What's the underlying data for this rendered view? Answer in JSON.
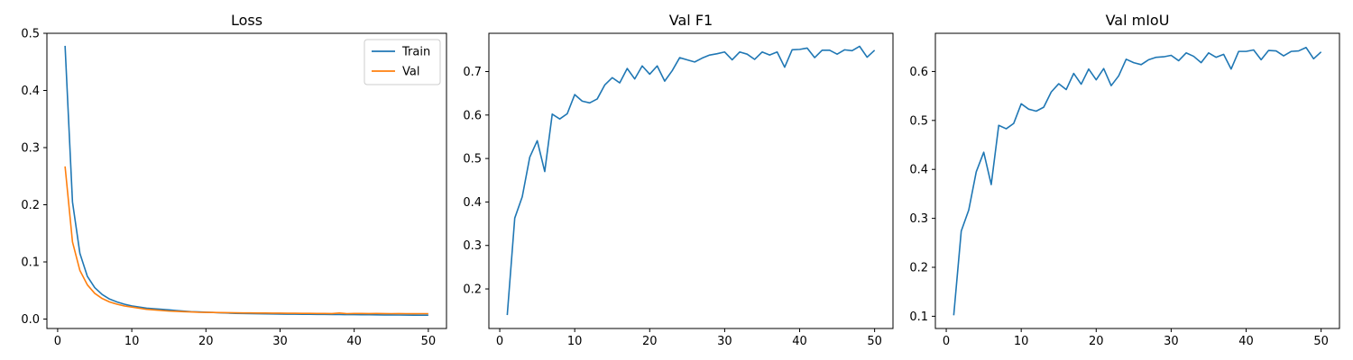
{
  "chart_data": [
    {
      "type": "line",
      "title": "Loss",
      "xlabel": "",
      "ylabel": "",
      "xlim": [
        -1.45,
        52.45
      ],
      "ylim": [
        -0.0165,
        0.5
      ],
      "xticks": [
        0,
        10,
        20,
        30,
        40,
        50
      ],
      "yticks": [
        0.0,
        0.1,
        0.2,
        0.3,
        0.4,
        0.5
      ],
      "ytick_labels": [
        "0.0",
        "0.1",
        "0.2",
        "0.3",
        "0.4",
        "0.5"
      ],
      "grid": false,
      "legend": "top-right",
      "x": [
        1,
        2,
        3,
        4,
        5,
        6,
        7,
        8,
        9,
        10,
        11,
        12,
        13,
        14,
        15,
        16,
        17,
        18,
        19,
        20,
        21,
        22,
        23,
        24,
        25,
        26,
        27,
        28,
        29,
        30,
        31,
        32,
        33,
        34,
        35,
        36,
        37,
        38,
        39,
        40,
        41,
        42,
        43,
        44,
        45,
        46,
        47,
        48,
        49,
        50
      ],
      "series": [
        {
          "name": "Train",
          "color": "#1f77b4",
          "values": [
            0.478,
            0.205,
            0.115,
            0.075,
            0.055,
            0.043,
            0.035,
            0.03,
            0.026,
            0.023,
            0.021,
            0.019,
            0.018,
            0.017,
            0.016,
            0.015,
            0.014,
            0.013,
            0.0125,
            0.012,
            0.0115,
            0.011,
            0.0105,
            0.01,
            0.0098,
            0.0096,
            0.0094,
            0.0092,
            0.009,
            0.0088,
            0.0086,
            0.0085,
            0.0084,
            0.0083,
            0.0082,
            0.0081,
            0.008,
            0.0079,
            0.0078,
            0.0077,
            0.0076,
            0.0075,
            0.0074,
            0.0073,
            0.0072,
            0.0071,
            0.007,
            0.0069,
            0.0068,
            0.0068
          ]
        },
        {
          "name": "Val",
          "color": "#ff7f0e",
          "values": [
            0.267,
            0.135,
            0.085,
            0.06,
            0.045,
            0.036,
            0.03,
            0.026,
            0.023,
            0.021,
            0.019,
            0.017,
            0.016,
            0.015,
            0.014,
            0.0135,
            0.013,
            0.0125,
            0.012,
            0.0118,
            0.0116,
            0.0114,
            0.0112,
            0.011,
            0.0108,
            0.0107,
            0.0106,
            0.0105,
            0.0104,
            0.0103,
            0.0102,
            0.0101,
            0.01,
            0.0099,
            0.0098,
            0.0097,
            0.0096,
            0.0105,
            0.0095,
            0.0098,
            0.0097,
            0.0096,
            0.0097,
            0.0096,
            0.0095,
            0.0096,
            0.0095,
            0.0094,
            0.0095,
            0.0095
          ]
        }
      ]
    },
    {
      "type": "line",
      "title": "Val F1",
      "xlabel": "",
      "ylabel": "",
      "xlim": [
        -1.45,
        52.45
      ],
      "ylim": [
        0.109,
        0.788
      ],
      "xticks": [
        0,
        10,
        20,
        30,
        40,
        50
      ],
      "yticks": [
        0.2,
        0.3,
        0.4,
        0.5,
        0.6,
        0.7
      ],
      "ytick_labels": [
        "0.2",
        "0.3",
        "0.4",
        "0.5",
        "0.6",
        "0.7"
      ],
      "grid": false,
      "x": [
        1,
        2,
        3,
        4,
        5,
        6,
        7,
        8,
        9,
        10,
        11,
        12,
        13,
        14,
        15,
        16,
        17,
        18,
        19,
        20,
        21,
        22,
        23,
        24,
        25,
        26,
        27,
        28,
        29,
        30,
        31,
        32,
        33,
        34,
        35,
        36,
        37,
        38,
        39,
        40,
        41,
        42,
        43,
        44,
        45,
        46,
        47,
        48,
        49,
        50
      ],
      "series": [
        {
          "color": "#1f77b4",
          "values": [
            0.14,
            0.363,
            0.412,
            0.503,
            0.541,
            0.47,
            0.602,
            0.591,
            0.603,
            0.647,
            0.632,
            0.628,
            0.637,
            0.669,
            0.686,
            0.674,
            0.707,
            0.683,
            0.713,
            0.694,
            0.713,
            0.678,
            0.702,
            0.732,
            0.727,
            0.722,
            0.731,
            0.738,
            0.741,
            0.745,
            0.727,
            0.745,
            0.74,
            0.728,
            0.745,
            0.738,
            0.745,
            0.71,
            0.75,
            0.751,
            0.754,
            0.732,
            0.749,
            0.749,
            0.74,
            0.75,
            0.748,
            0.758,
            0.733,
            0.749
          ]
        }
      ]
    },
    {
      "type": "line",
      "title": "Val mIoU",
      "xlabel": "",
      "ylabel": "",
      "xlim": [
        -1.45,
        52.45
      ],
      "ylim": [
        0.075,
        0.678
      ],
      "xticks": [
        0,
        10,
        20,
        30,
        40,
        50
      ],
      "yticks": [
        0.1,
        0.2,
        0.3,
        0.4,
        0.5,
        0.6
      ],
      "ytick_labels": [
        "0.1",
        "0.2",
        "0.3",
        "0.4",
        "0.5",
        "0.6"
      ],
      "grid": false,
      "x": [
        1,
        2,
        3,
        4,
        5,
        6,
        7,
        8,
        9,
        10,
        11,
        12,
        13,
        14,
        15,
        16,
        17,
        18,
        19,
        20,
        21,
        22,
        23,
        24,
        25,
        26,
        27,
        28,
        29,
        30,
        31,
        32,
        33,
        34,
        35,
        36,
        37,
        38,
        39,
        40,
        41,
        42,
        43,
        44,
        45,
        46,
        47,
        48,
        49,
        50
      ],
      "series": [
        {
          "color": "#1f77b4",
          "values": [
            0.102,
            0.274,
            0.317,
            0.395,
            0.435,
            0.369,
            0.49,
            0.483,
            0.494,
            0.534,
            0.523,
            0.519,
            0.527,
            0.558,
            0.575,
            0.563,
            0.596,
            0.574,
            0.605,
            0.583,
            0.606,
            0.571,
            0.591,
            0.625,
            0.618,
            0.614,
            0.624,
            0.629,
            0.63,
            0.633,
            0.622,
            0.638,
            0.631,
            0.618,
            0.638,
            0.629,
            0.635,
            0.605,
            0.641,
            0.641,
            0.644,
            0.624,
            0.643,
            0.642,
            0.632,
            0.641,
            0.642,
            0.649,
            0.626,
            0.64
          ]
        }
      ]
    }
  ]
}
